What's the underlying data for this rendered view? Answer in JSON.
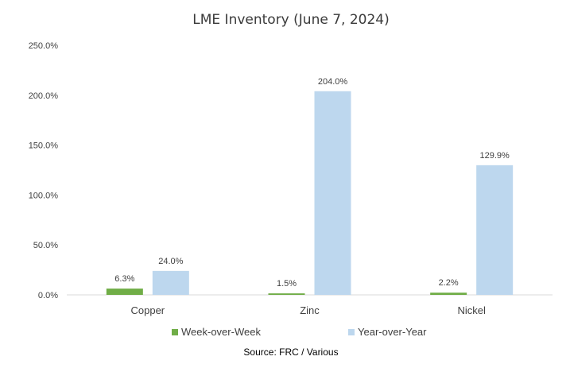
{
  "chart_data": {
    "type": "bar",
    "title": "LME Inventory (June 7, 2024)",
    "categories": [
      "Copper",
      "Zinc",
      "Nickel"
    ],
    "series": [
      {
        "name": "Week-over-Week",
        "values": [
          6.3,
          1.5,
          2.2
        ],
        "labels": [
          "6.3%",
          "1.5%",
          "2.2%"
        ],
        "color": "#70ad47"
      },
      {
        "name": "Year-over-Year",
        "values": [
          24.0,
          204.0,
          129.9
        ],
        "labels": [
          "24.0%",
          "204.0%",
          "129.9%"
        ],
        "color": "#bdd7ee"
      }
    ],
    "ylim": [
      0,
      250
    ],
    "yticks": [
      0,
      50,
      100,
      150,
      200,
      250
    ],
    "ytick_labels": [
      "0.0%",
      "50.0%",
      "100.0%",
      "150.0%",
      "200.0%",
      "250.0%"
    ],
    "xlabel": "",
    "ylabel": "",
    "legend_position": "bottom",
    "grid": false,
    "source": "Source: FRC / Various"
  }
}
